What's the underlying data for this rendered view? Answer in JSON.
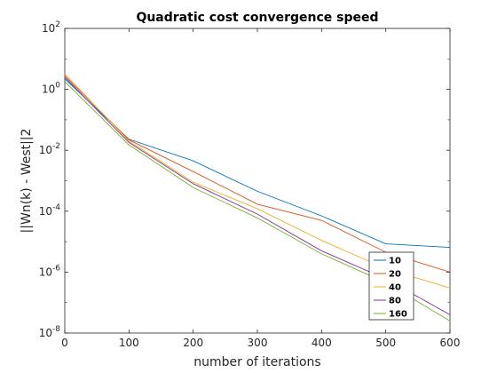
{
  "chart_data": {
    "type": "line",
    "title": "Quadratic cost convergence speed",
    "xlabel": "number of iterations",
    "ylabel": "||Wn(k) - West||2",
    "xlim": [
      0,
      600
    ],
    "ylim_exponents": [
      -8,
      2
    ],
    "yscale": "log",
    "grid": false,
    "legend_position": "bottom-right",
    "x_ticks": [
      "0",
      "100",
      "200",
      "300",
      "400",
      "500",
      "600"
    ],
    "y_tick_exponents": [
      "2",
      "0",
      "-2",
      "-4",
      "-6",
      "-8"
    ],
    "y_tick_base": "10",
    "x": [
      0,
      100,
      200,
      300,
      400,
      500,
      600
    ],
    "series": [
      {
        "name": "10",
        "color": "#0072bd",
        "values": [
          2.2,
          0.023,
          0.0045,
          0.00045,
          7e-05,
          8.5e-06,
          6.5e-06
        ]
      },
      {
        "name": "20",
        "color": "#d95319",
        "values": [
          2.8,
          0.022,
          0.002,
          0.00017,
          5e-05,
          4.5e-06,
          1e-06
        ]
      },
      {
        "name": "40",
        "color": "#edb120",
        "values": [
          3.2,
          0.02,
          0.0009,
          0.00012,
          1.1e-05,
          1.3e-06,
          3e-07
        ]
      },
      {
        "name": "80",
        "color": "#7e2f8e",
        "values": [
          2.5,
          0.018,
          0.0008,
          8e-05,
          5e-06,
          6e-07,
          4e-08
        ]
      },
      {
        "name": "160",
        "color": "#77ac30",
        "values": [
          1.8,
          0.015,
          0.0006,
          6e-05,
          4e-06,
          4.5e-07,
          2.5e-08
        ]
      }
    ]
  }
}
